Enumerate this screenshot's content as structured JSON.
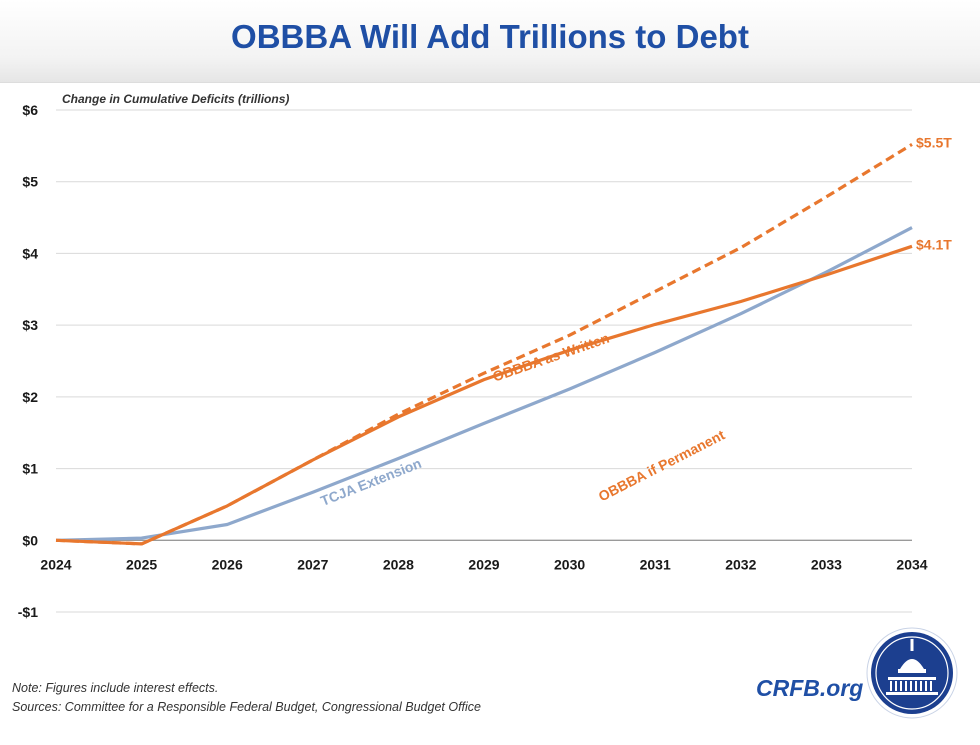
{
  "header": {
    "title": "OBBBA Will Add Trillions to Debt"
  },
  "chart_data": {
    "type": "line",
    "subtitle": "Change in Cumulative Deficits (trillions)",
    "x": [
      2024,
      2025,
      2026,
      2027,
      2028,
      2029,
      2030,
      2031,
      2032,
      2033,
      2034
    ],
    "x_tick_labels": [
      "2024",
      "2025",
      "2026",
      "2027",
      "2028",
      "2029",
      "2030",
      "2031",
      "2032",
      "2033",
      "2034"
    ],
    "y_ticks": [
      6,
      5,
      4,
      3,
      2,
      1,
      0,
      -1
    ],
    "y_tick_labels": [
      "$6",
      "$5",
      "$4",
      "$3",
      "$2",
      "$1",
      "$0",
      "-$1"
    ],
    "ylim": [
      -1,
      6
    ],
    "xlim": [
      2024,
      2034
    ],
    "grid": true,
    "series": [
      {
        "name": "OBBBA if Permanent",
        "color": "#e8772e",
        "style": "dashed",
        "values": [
          0,
          -0.05,
          0.48,
          1.12,
          1.76,
          2.33,
          2.86,
          3.47,
          4.08,
          4.79,
          5.52
        ],
        "end_label": "$5.5T"
      },
      {
        "name": "OBBBA as Written",
        "color": "#e8772e",
        "style": "solid",
        "values": [
          0,
          -0.05,
          0.48,
          1.12,
          1.72,
          2.24,
          2.65,
          3.01,
          3.33,
          3.7,
          4.1
        ],
        "end_label": "$4.1T"
      },
      {
        "name": "TCJA Extension",
        "color": "#8ea8cc",
        "style": "solid",
        "values": [
          0,
          0.03,
          0.22,
          0.67,
          1.14,
          1.63,
          2.11,
          2.62,
          3.16,
          3.74,
          4.36
        ]
      }
    ]
  },
  "footer": {
    "note": "Note: Figures include interest effects.",
    "sources": "Sources: Committee for a Responsible Federal Budget, Congressional Budget Office",
    "link": "CRFB.org"
  }
}
